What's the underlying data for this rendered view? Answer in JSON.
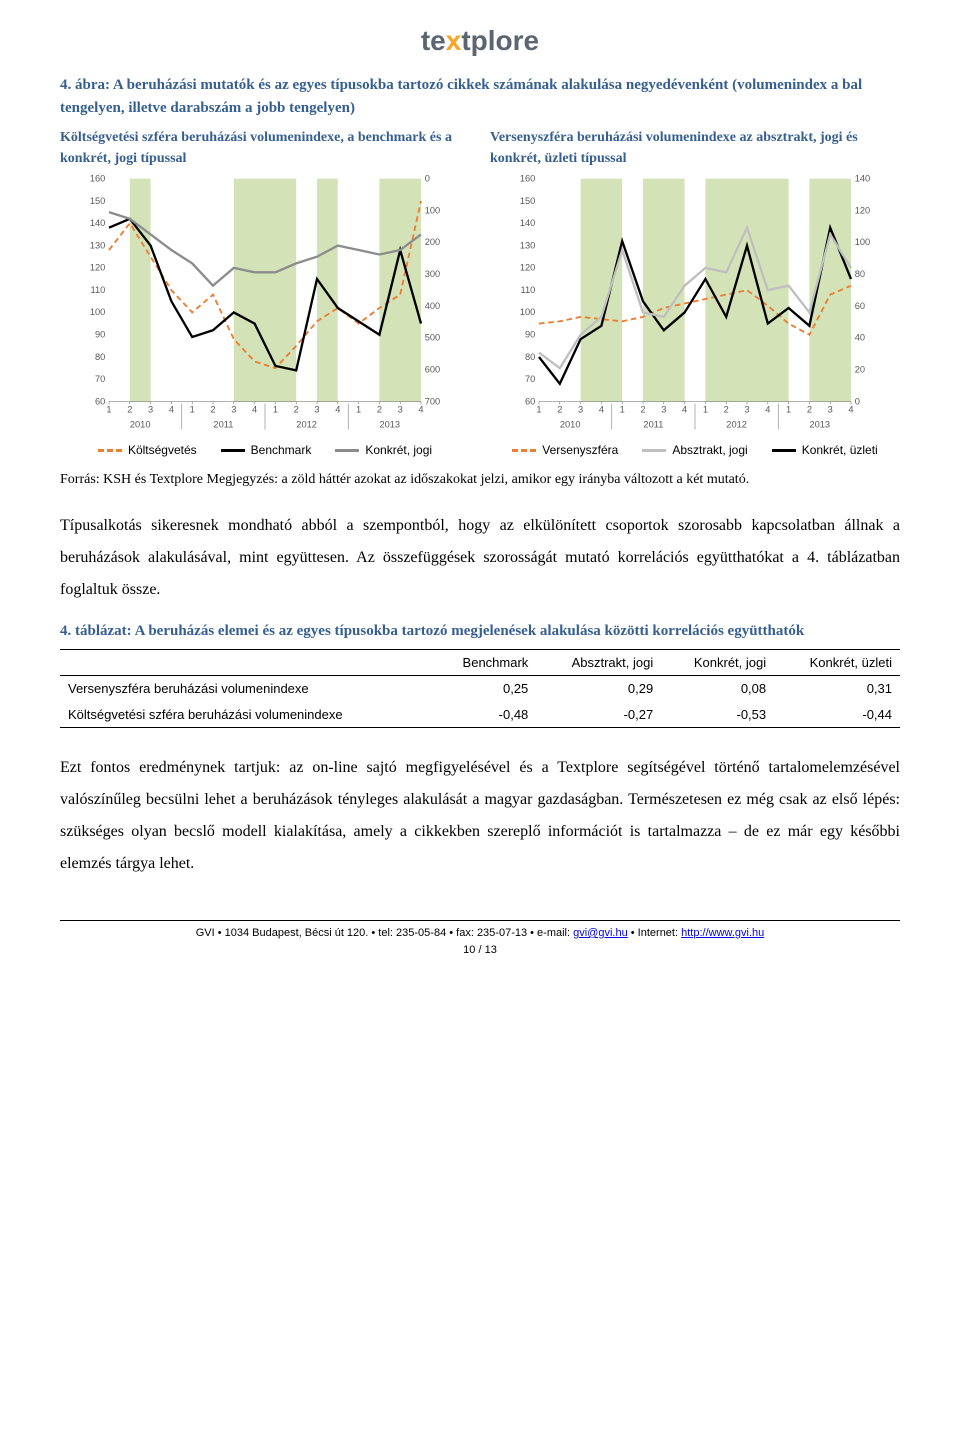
{
  "logo": {
    "part1": "te",
    "accent": "x",
    "part2": "tplore"
  },
  "figure_caption": "4. ábra: A beruházási mutatók és az egyes típusokba tartozó cikkek számának alakulása negyedévenként (volumenindex a bal tengelyen, illetve darabszám a jobb tengelyen)",
  "chart_left": {
    "subtitle": "Költségvetési szféra beruházási volumenindexe, a benchmark és a konkrét, jogi típussal",
    "x_quarters": [
      "1",
      "2",
      "3",
      "4",
      "1",
      "2",
      "3",
      "4",
      "1",
      "2",
      "3",
      "4",
      "1",
      "2",
      "3",
      "4"
    ],
    "x_years": [
      "2010",
      "2011",
      "2012",
      "2013"
    ],
    "y_left": {
      "min": 60,
      "max": 160,
      "ticks": [
        60,
        70,
        80,
        90,
        100,
        110,
        120,
        130,
        140,
        150,
        160
      ]
    },
    "y_right": {
      "min": 0,
      "max": 700,
      "ticks": [
        0,
        100,
        200,
        300,
        400,
        500,
        600,
        700
      ],
      "inverted": true
    },
    "bands": [
      [
        1,
        2
      ],
      [
        6,
        9
      ],
      [
        10,
        11
      ],
      [
        13,
        15
      ]
    ],
    "series": [
      {
        "name": "Költségvetés",
        "color": "#ed7d31",
        "dash": "6,4",
        "width": 2,
        "axis": "left",
        "values": [
          128,
          140,
          125,
          110,
          100,
          108,
          88,
          78,
          75,
          85,
          96,
          102,
          95,
          102,
          108,
          150
        ]
      },
      {
        "name": "Benchmark",
        "color": "#000000",
        "dash": "",
        "width": 2.5,
        "axis": "left",
        "values": [
          138,
          142,
          130,
          105,
          89,
          92,
          100,
          95,
          76,
          74,
          115,
          102,
          96,
          90,
          128,
          95
        ]
      },
      {
        "name": "Konkrét, jogi",
        "color": "#8c8c8c",
        "dash": "",
        "width": 2.5,
        "axis": "left",
        "values": [
          145,
          142,
          135,
          128,
          122,
          112,
          120,
          118,
          118,
          122,
          125,
          130,
          128,
          126,
          128,
          135
        ]
      }
    ],
    "legend": [
      {
        "label": "Költségvetés",
        "color": "#ed7d31",
        "dash": "dashed"
      },
      {
        "label": "Benchmark",
        "color": "#000000",
        "dash": "solid"
      },
      {
        "label": "Konkrét, jogi",
        "color": "#8c8c8c",
        "dash": "solid"
      }
    ],
    "band_color": "#d4e2b8",
    "background": "#ffffff"
  },
  "chart_right": {
    "subtitle": "Versenyszféra beruházási volumenindexe az absztrakt, jogi és konkrét, üzleti típussal",
    "x_quarters": [
      "1",
      "2",
      "3",
      "4",
      "1",
      "2",
      "3",
      "4",
      "1",
      "2",
      "3",
      "4",
      "1",
      "2",
      "3",
      "4"
    ],
    "x_years": [
      "2010",
      "2011",
      "2012",
      "2013"
    ],
    "y_left": {
      "min": 60,
      "max": 160,
      "ticks": [
        60,
        70,
        80,
        90,
        100,
        110,
        120,
        130,
        140,
        150,
        160
      ]
    },
    "y_right": {
      "min": 0,
      "max": 140,
      "ticks": [
        0,
        20,
        40,
        60,
        80,
        100,
        120,
        140
      ]
    },
    "bands": [
      [
        2,
        4
      ],
      [
        5,
        7
      ],
      [
        8,
        12
      ],
      [
        13,
        15
      ]
    ],
    "series": [
      {
        "name": "Versenyszféra",
        "color": "#ed7d31",
        "dash": "6,4",
        "width": 2,
        "axis": "left",
        "values": [
          95,
          96,
          98,
          97,
          96,
          98,
          102,
          104,
          106,
          108,
          110,
          103,
          95,
          90,
          108,
          112
        ]
      },
      {
        "name": "Konkrét, üzleti",
        "color": "#000000",
        "dash": "",
        "width": 2.5,
        "axis": "left",
        "values": [
          80,
          68,
          88,
          94,
          132,
          105,
          92,
          100,
          115,
          98,
          130,
          95,
          102,
          94,
          138,
          115
        ]
      },
      {
        "name": "Absztrakt, jogi",
        "color": "#bfbfbf",
        "dash": "",
        "width": 2.5,
        "axis": "left",
        "values": [
          82,
          75,
          90,
          98,
          128,
          100,
          98,
          112,
          120,
          118,
          138,
          110,
          112,
          100,
          135,
          120
        ]
      }
    ],
    "legend": [
      {
        "label": "Versenyszféra",
        "color": "#ed7d31",
        "dash": "dashed"
      },
      {
        "label": "Absztrakt, jogi",
        "color": "#bfbfbf",
        "dash": "solid"
      },
      {
        "label": "Konkrét, üzleti",
        "color": "#000000",
        "dash": "solid"
      }
    ],
    "band_color": "#d4e2b8",
    "background": "#ffffff"
  },
  "source_note": "Forrás: KSH és Textplore Megjegyzés: a zöld háttér azokat az időszakokat jelzi, amikor egy irányba változott a két mutató.",
  "para1": "Típusalkotás sikeresnek mondható abból a szempontból, hogy az elkülönített csoportok szorosabb kapcsolatban állnak a beruházások alakulásával, mint együttesen. Az összefüggések szorosságát mutató korrelációs együtthatókat a 4. táblázatban foglaltuk össze.",
  "table_caption": "4. táblázat: A beruházás elemei és az egyes típusokba tartozó megjelenések alakulása közötti korrelációs együtthatók",
  "table": {
    "columns": [
      "",
      "Benchmark",
      "Absztrakt, jogi",
      "Konkrét, jogi",
      "Konkrét, üzleti"
    ],
    "rows": [
      [
        "Versenyszféra beruházási volumenindexe",
        "0,25",
        "0,29",
        "0,08",
        "0,31"
      ],
      [
        "Költségvetési szféra beruházási volumenindexe",
        "-0,48",
        "-0,27",
        "-0,53",
        "-0,44"
      ]
    ]
  },
  "para2": "Ezt fontos eredménynek tartjuk: az on-line sajtó megfigyelésével és a Textplore segítségével történő tartalomelemzésével valószínűleg becsülni lehet a beruházások tényleges alakulását a magyar gazdaságban. Természetesen ez még csak az első lépés: szükséges olyan becslő modell kialakítása, amely a cikkekben szereplő információt is tartalmazza – de ez már egy későbbi elemzés tárgya lehet.",
  "footer": {
    "line1_pre": "GVI • 1034 Budapest, Bécsi út 120. • tel: 235-05-84 • fax: 235-07-13 • e-mail: ",
    "email": "gvi@gvi.hu",
    "line1_mid": " • Internet: ",
    "url": "http://www.gvi.hu",
    "page": "10 / 13"
  }
}
